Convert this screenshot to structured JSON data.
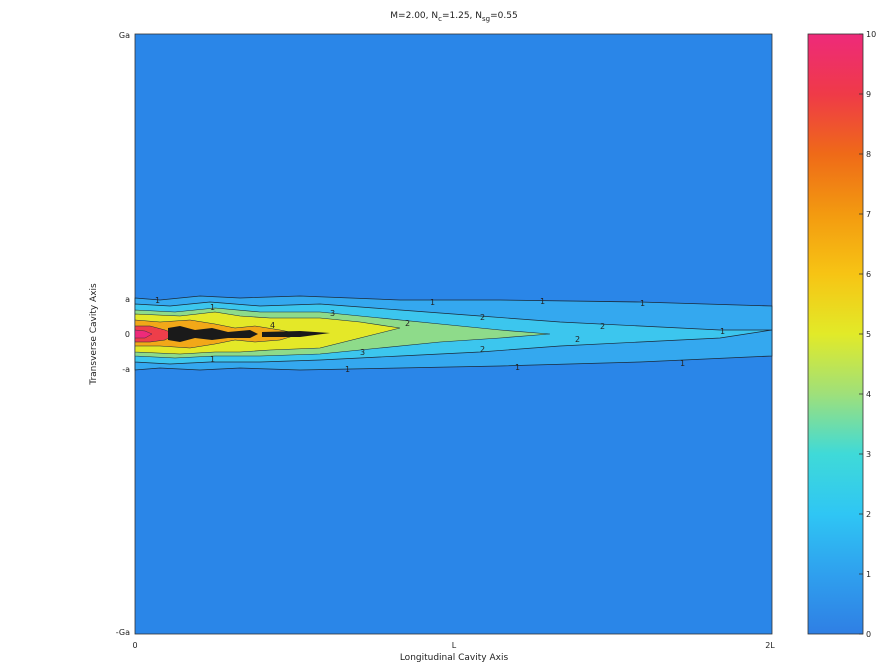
{
  "chart_data": [
    {
      "type": "heatmap",
      "subtype": "filled-contour",
      "title": "M=2.00,  N",
      "title_parts": [
        {
          "text": "M=2.00,  N",
          "sub": false
        },
        {
          "text": "c",
          "sub": true
        },
        {
          "text": "=1.25,  N",
          "sub": false
        },
        {
          "text": "sg",
          "sub": true
        },
        {
          "text": "=0.55",
          "sub": false
        }
      ],
      "xlabel": "Longitudinal Cavity Axis",
      "ylabel": "Transverse Cavity Axis",
      "x_tick_labels": [
        "0",
        "L",
        "2L"
      ],
      "y_tick_labels": [
        "Ga",
        "a",
        "0",
        "-a",
        "-Ga"
      ],
      "x_range": [
        "0",
        "2L"
      ],
      "y_range": [
        "-Ga",
        "Ga"
      ],
      "colormap": [
        "#2f7fe4",
        "#2fa0ee",
        "#2fc6f4",
        "#3fdad8",
        "#9fe07a",
        "#e2ea28",
        "#f7c414",
        "#f39a10",
        "#ef6a18",
        "#ef3a48",
        "#ee2a7a"
      ],
      "background_level_color": "#2a86e8",
      "contour_lines": true,
      "contour_labels": [
        "1",
        "1",
        "1",
        "1",
        "1",
        "1",
        "1",
        "2",
        "2",
        "2",
        "3",
        "3",
        "4",
        "1",
        "1",
        "1",
        "2",
        "2"
      ],
      "features": [
        {
          "name": "high-intensity core near inlet",
          "x": "0 to 0.15L",
          "y": "-a to a",
          "max_level": 10
        },
        {
          "name": "second lobe",
          "x": "0.2L to 0.45L",
          "y": "-a to a",
          "max_level": 5
        },
        {
          "name": "tail decaying downstream",
          "x": "0.45L to 2L",
          "y": "-a to a",
          "max_level": 2
        }
      ]
    },
    {
      "type": "colorbar",
      "ticks": [
        "0",
        "1",
        "2",
        "3",
        "4",
        "5",
        "6",
        "7",
        "8",
        "9",
        "10"
      ],
      "range": [
        0,
        10
      ],
      "colors": [
        "#2f7fe4",
        "#2fa0ee",
        "#2fc6f4",
        "#3fdad8",
        "#9fe07a",
        "#e2ea28",
        "#f7c414",
        "#f39a10",
        "#ef6a18",
        "#ef3a48",
        "#ee2a7a"
      ]
    }
  ]
}
